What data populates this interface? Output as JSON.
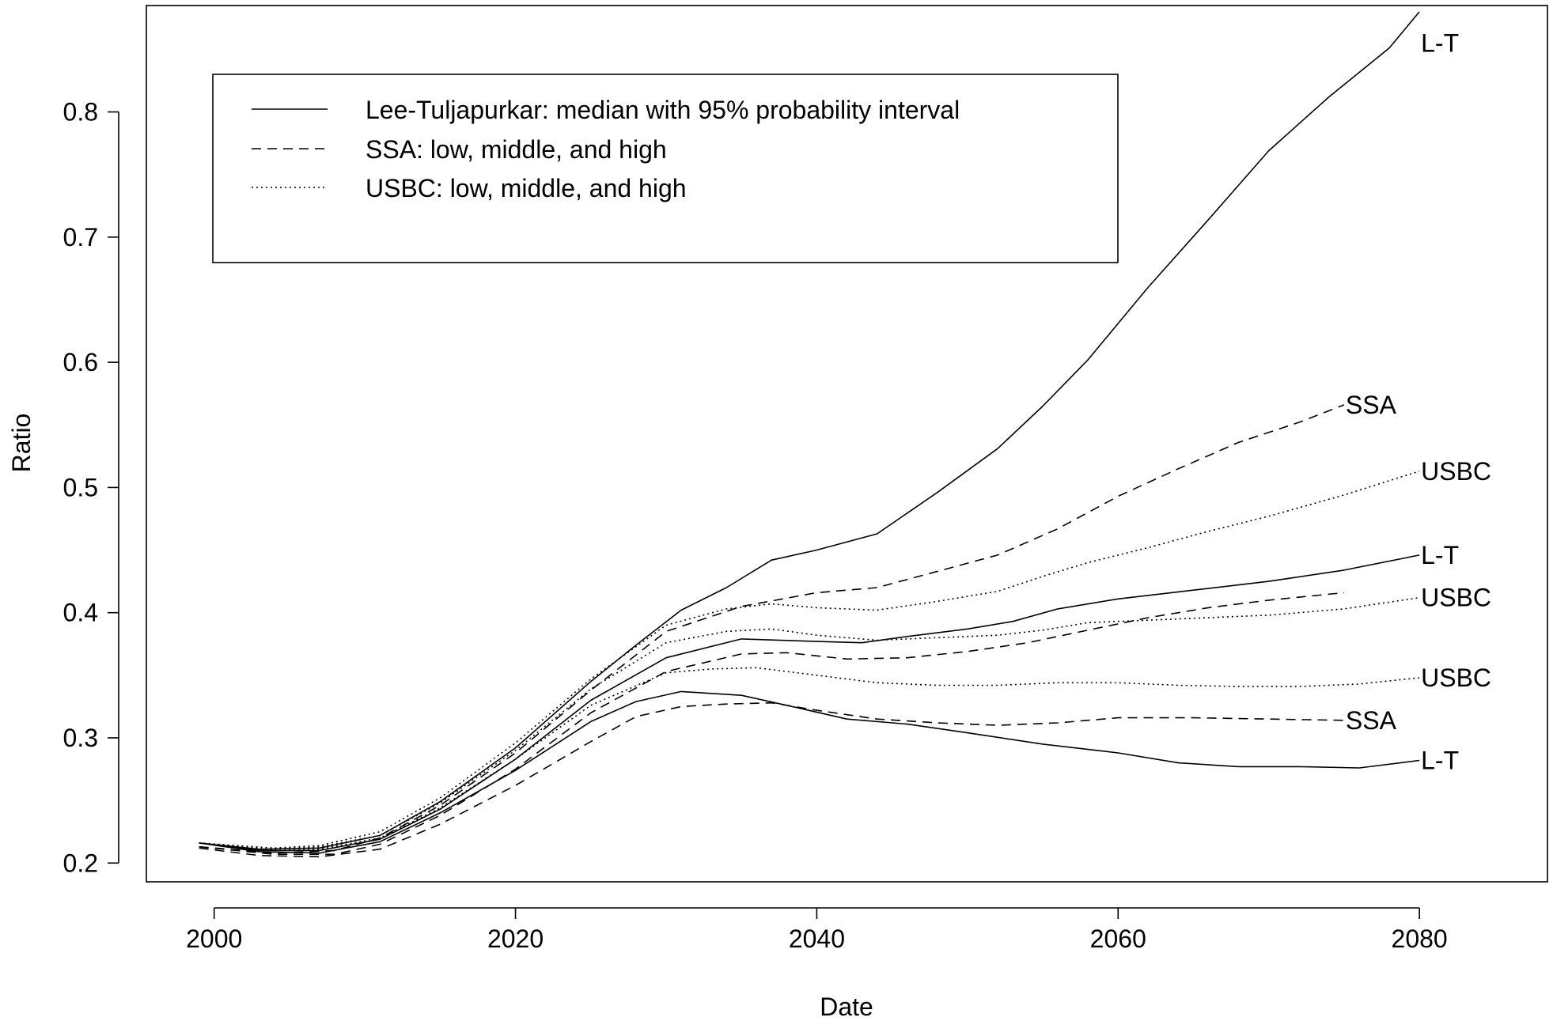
{
  "chart_data": {
    "type": "line",
    "title": "",
    "xlabel": "Date",
    "ylabel": "Ratio",
    "xlim": [
      1995.5,
      2088.5
    ],
    "ylim": [
      0.185,
      0.885
    ],
    "xticks": [
      2000,
      2020,
      2040,
      2060,
      2080
    ],
    "xtick_labels": [
      "2000",
      "2020",
      "2040",
      "2060",
      "2080"
    ],
    "yticks": [
      0.2,
      0.3,
      0.4,
      0.5,
      0.6,
      0.7,
      0.8
    ],
    "ytick_labels": [
      "0.2",
      "0.3",
      "0.4",
      "0.5",
      "0.6",
      "0.7",
      "0.8"
    ],
    "grid": false,
    "legend": {
      "placement": "top-left",
      "entries": [
        {
          "style": "solid",
          "label": "Lee-Tuljapurkar: median with 95% probability interval"
        },
        {
          "style": "dashed",
          "label": "SSA: low, middle, and high"
        },
        {
          "style": "dotted",
          "label": "USBC: low, middle, and high"
        }
      ]
    },
    "series": [
      {
        "group": "L-T",
        "style": "solid",
        "end_label": "L-T",
        "x": [
          1999,
          2003,
          2007,
          2011,
          2015,
          2020,
          2025,
          2028,
          2031,
          2034,
          2037,
          2040,
          2044,
          2048,
          2052,
          2055,
          2058,
          2062,
          2066,
          2070,
          2074,
          2078,
          2080
        ],
        "y": [
          0.216,
          0.211,
          0.212,
          0.222,
          0.249,
          0.292,
          0.345,
          0.374,
          0.402,
          0.42,
          0.442,
          0.45,
          0.463,
          0.496,
          0.531,
          0.565,
          0.602,
          0.66,
          0.714,
          0.769,
          0.812,
          0.851,
          0.88
        ]
      },
      {
        "group": "L-T",
        "style": "solid",
        "end_label": "L-T",
        "x": [
          1999,
          2003,
          2007,
          2011,
          2015,
          2020,
          2025,
          2030,
          2035,
          2040,
          2043,
          2046,
          2050,
          2053,
          2056,
          2060,
          2065,
          2070,
          2075,
          2080
        ],
        "y": [
          0.216,
          0.21,
          0.21,
          0.219,
          0.243,
          0.283,
          0.33,
          0.364,
          0.379,
          0.377,
          0.376,
          0.381,
          0.387,
          0.393,
          0.403,
          0.411,
          0.418,
          0.425,
          0.434,
          0.446
        ]
      },
      {
        "group": "L-T",
        "style": "solid",
        "end_label": "L-T",
        "x": [
          1999,
          2003,
          2007,
          2011,
          2015,
          2020,
          2025,
          2028,
          2031,
          2035,
          2038,
          2042,
          2046,
          2050,
          2055,
          2060,
          2064,
          2068,
          2072,
          2076,
          2080
        ],
        "y": [
          0.216,
          0.209,
          0.208,
          0.217,
          0.24,
          0.274,
          0.313,
          0.329,
          0.337,
          0.334,
          0.326,
          0.315,
          0.311,
          0.304,
          0.295,
          0.288,
          0.28,
          0.277,
          0.277,
          0.276,
          0.282
        ]
      },
      {
        "group": "SSA",
        "style": "dashed",
        "end_label": "SSA",
        "x": [
          1999,
          2004,
          2008,
          2011,
          2015,
          2020,
          2025,
          2030,
          2035,
          2040,
          2044,
          2048,
          2052,
          2056,
          2060,
          2064,
          2068,
          2072,
          2075
        ],
        "y": [
          0.213,
          0.208,
          0.21,
          0.22,
          0.246,
          0.288,
          0.338,
          0.385,
          0.405,
          0.416,
          0.42,
          0.433,
          0.446,
          0.467,
          0.493,
          0.515,
          0.536,
          0.552,
          0.566
        ]
      },
      {
        "group": "SSA",
        "style": "dashed",
        "end_label": "",
        "x": [
          1999,
          2004,
          2008,
          2011,
          2015,
          2020,
          2025,
          2030,
          2035,
          2038,
          2042,
          2046,
          2050,
          2054,
          2058,
          2062,
          2066,
          2070,
          2075
        ],
        "y": [
          0.213,
          0.207,
          0.207,
          0.215,
          0.238,
          0.275,
          0.32,
          0.353,
          0.367,
          0.368,
          0.363,
          0.364,
          0.369,
          0.376,
          0.386,
          0.396,
          0.404,
          0.41,
          0.416
        ]
      },
      {
        "group": "SSA",
        "style": "dashed",
        "end_label": "SSA",
        "x": [
          1999,
          2003,
          2007,
          2011,
          2015,
          2020,
          2025,
          2028,
          2031,
          2034,
          2037,
          2040,
          2044,
          2048,
          2052,
          2056,
          2060,
          2065,
          2070,
          2075
        ],
        "y": [
          0.212,
          0.206,
          0.205,
          0.211,
          0.231,
          0.262,
          0.297,
          0.317,
          0.325,
          0.327,
          0.328,
          0.322,
          0.315,
          0.312,
          0.31,
          0.312,
          0.316,
          0.316,
          0.315,
          0.314
        ]
      },
      {
        "group": "USBC",
        "style": "dotted",
        "end_label": "USBC",
        "x": [
          1999,
          2004,
          2007,
          2011,
          2015,
          2020,
          2025,
          2030,
          2034,
          2037,
          2040,
          2044,
          2048,
          2052,
          2055,
          2058,
          2062,
          2066,
          2070,
          2075,
          2080
        ],
        "y": [
          0.216,
          0.212,
          0.214,
          0.225,
          0.252,
          0.296,
          0.347,
          0.39,
          0.403,
          0.407,
          0.404,
          0.402,
          0.409,
          0.417,
          0.429,
          0.44,
          0.452,
          0.465,
          0.477,
          0.494,
          0.513
        ]
      },
      {
        "group": "USBC",
        "style": "dotted",
        "end_label": "USBC",
        "x": [
          1999,
          2004,
          2007,
          2011,
          2015,
          2020,
          2025,
          2030,
          2034,
          2037,
          2040,
          2044,
          2048,
          2052,
          2055,
          2058,
          2062,
          2066,
          2070,
          2075,
          2080
        ],
        "y": [
          0.216,
          0.211,
          0.213,
          0.222,
          0.248,
          0.29,
          0.339,
          0.376,
          0.385,
          0.387,
          0.382,
          0.378,
          0.38,
          0.382,
          0.386,
          0.392,
          0.394,
          0.396,
          0.398,
          0.403,
          0.412
        ]
      },
      {
        "group": "USBC",
        "style": "dotted",
        "end_label": "USBC",
        "x": [
          1999,
          2004,
          2007,
          2011,
          2015,
          2020,
          2025,
          2030,
          2033,
          2036,
          2040,
          2044,
          2048,
          2052,
          2056,
          2060,
          2064,
          2068,
          2072,
          2076,
          2080
        ],
        "y": [
          0.216,
          0.21,
          0.211,
          0.22,
          0.244,
          0.283,
          0.326,
          0.352,
          0.355,
          0.356,
          0.35,
          0.344,
          0.342,
          0.342,
          0.344,
          0.344,
          0.342,
          0.341,
          0.341,
          0.343,
          0.348
        ]
      }
    ]
  }
}
